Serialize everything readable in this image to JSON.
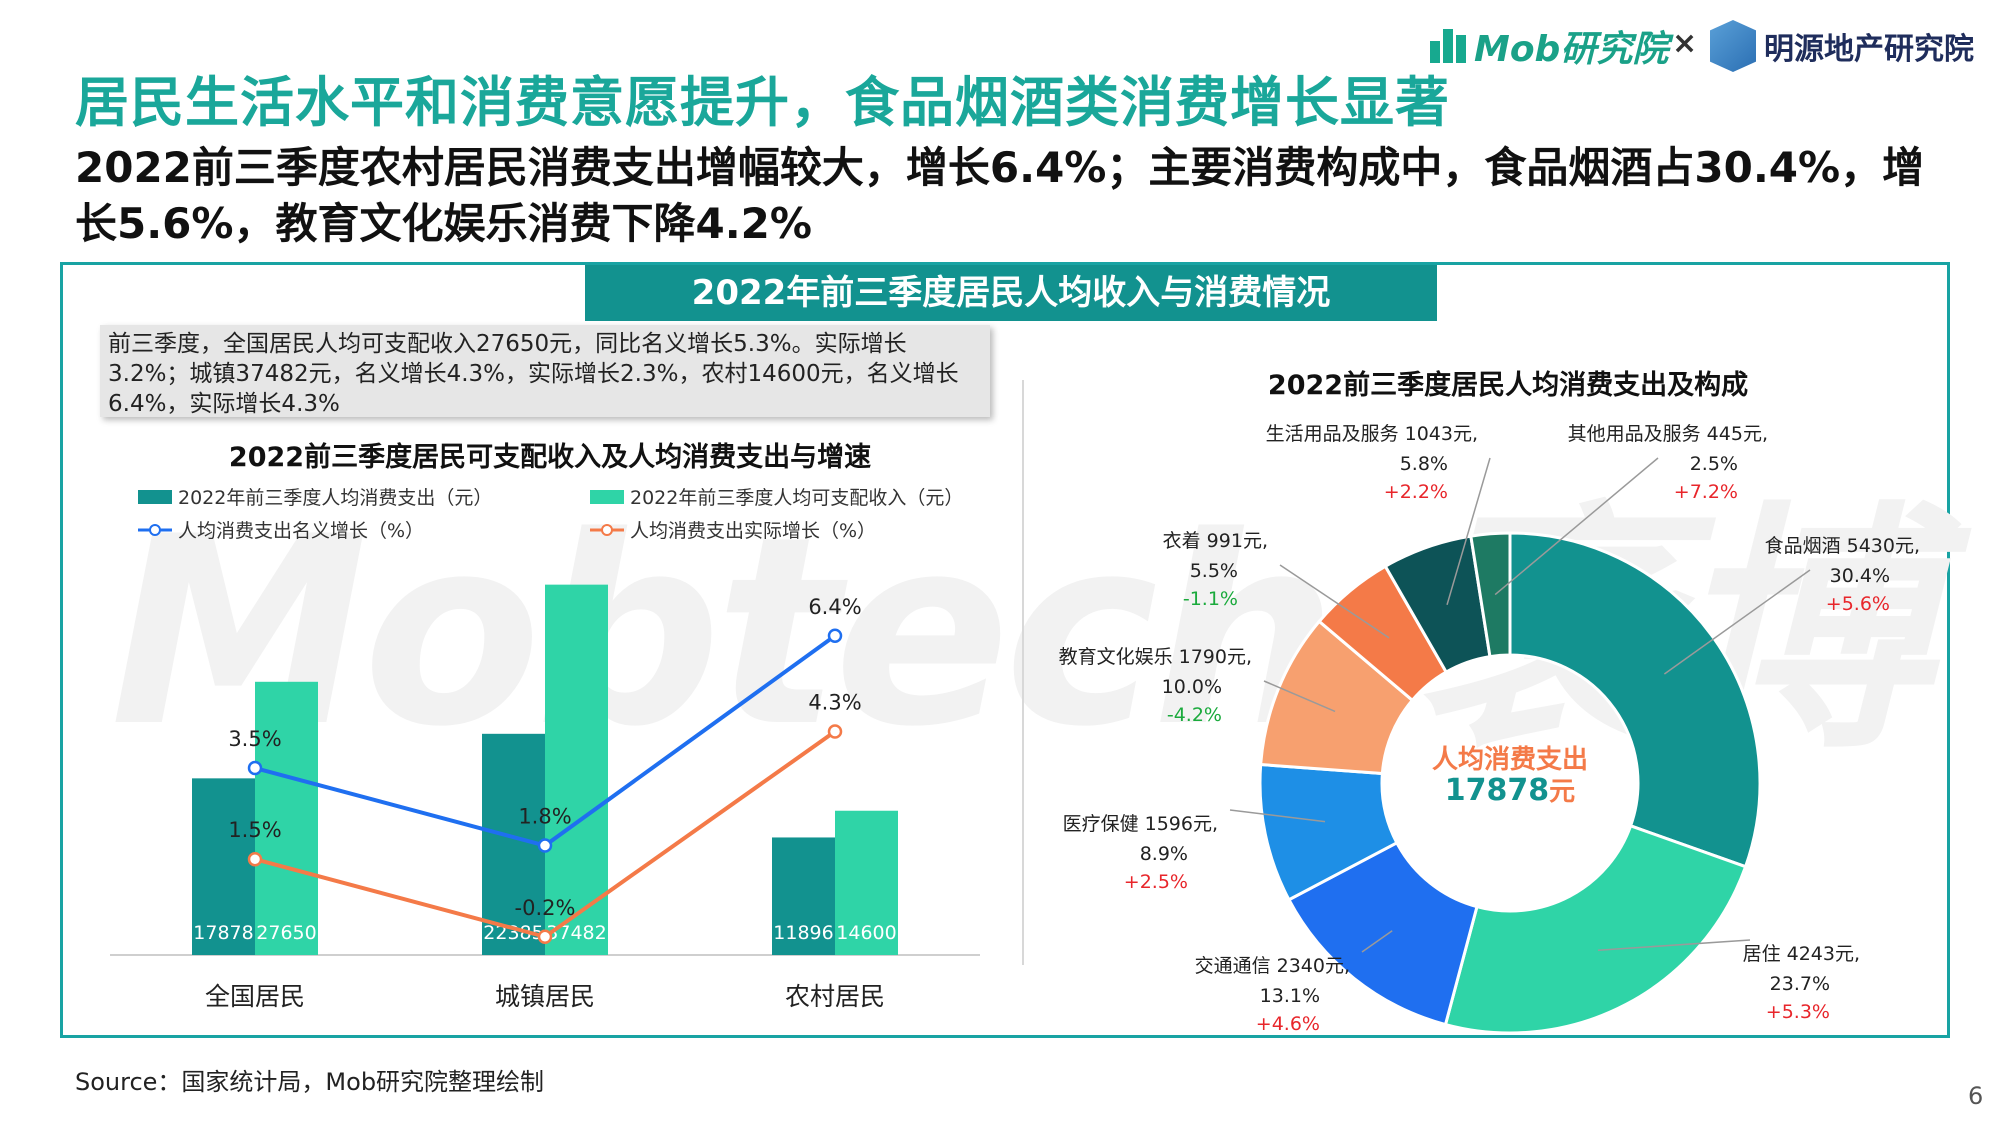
{
  "brand": {
    "mob": "Mob研究院",
    "sep": "×",
    "mingyuan": "明源地产研究院"
  },
  "title": "居民生活水平和消费意愿提升，食品烟酒类消费增长显著",
  "subtitle": "2022前三季度农村居民消费支出增幅较大，增长6.4%；主要消费构成中，食品烟酒占30.4%，增长5.6%，教育文化娱乐消费下降4.2%",
  "banner": "2022年前三季度居民人均收入与消费情况",
  "note": "前三季度，全国居民人均可支配收入27650元，同比名义增长5.3%。实际增长3.2%；城镇37482元，名义增长4.3%，实际增长2.3%，农村14600元，名义增长6.4%，实际增长4.3%",
  "watermark": "Mobtech 袤博",
  "source": "Source：国家统计局，Mob研究院整理绘制",
  "page": "6",
  "colors": {
    "teal_dark": "#12928f",
    "teal_light": "#2fd4a7",
    "blue": "#1f6ff0",
    "orange": "#f47a48",
    "frame": "#18a3a3"
  },
  "chart_data": [
    {
      "type": "bar",
      "title": "2022前三季度居民可支配收入及人均消费支出与增速",
      "categories": [
        "全国居民",
        "城镇居民",
        "农村居民"
      ],
      "series": [
        {
          "name": "2022年前三季度人均消费支出（元）",
          "kind": "bar",
          "values": [
            17878,
            22385,
            11896
          ]
        },
        {
          "name": "2022年前三季度人均可支配收入（元）",
          "kind": "bar",
          "values": [
            27650,
            37482,
            14600
          ]
        },
        {
          "name": "人均消费支出名义增长（%）",
          "kind": "line",
          "values": [
            3.5,
            1.8,
            6.4
          ],
          "labels": [
            "3.5%",
            "1.8%",
            "6.4%"
          ]
        },
        {
          "name": "人均消费支出实际增长（%）",
          "kind": "line",
          "values": [
            1.5,
            -0.2,
            4.3
          ],
          "labels": [
            "1.5%",
            "-0.2%",
            "4.3%"
          ]
        }
      ],
      "bar_ylim": [
        0,
        42000
      ],
      "line_ylim": [
        -0.6,
        8.5
      ],
      "grid": false,
      "legend": "top"
    },
    {
      "type": "pie",
      "title": "2022前三季度居民人均消费支出及构成",
      "center_label": "人均消费支出",
      "center_value": "17878",
      "center_unit": "元",
      "slices": [
        {
          "label": "食品烟酒 5430元,",
          "pct": "30.4%",
          "change": "+5.6%",
          "value": 30.4,
          "color": "#12928f"
        },
        {
          "label": "居住 4243元,",
          "pct": "23.7%",
          "change": "+5.3%",
          "value": 23.7,
          "color": "#2fd4a7"
        },
        {
          "label": "交通通信 2340元,",
          "pct": "13.1%",
          "change": "+4.6%",
          "value": 13.1,
          "color": "#1f6ff0"
        },
        {
          "label": "医疗保健 1596元,",
          "pct": "8.9%",
          "change": "+2.5%",
          "value": 8.9,
          "color": "#1e8fe6"
        },
        {
          "label": "教育文化娱乐 1790元,",
          "pct": "10.0%",
          "change": "-4.2%",
          "value": 10.0,
          "color": "#f7a06f"
        },
        {
          "label": "衣着 991元,",
          "pct": "5.5%",
          "change": "-1.1%",
          "value": 5.5,
          "color": "#f47a48"
        },
        {
          "label": "生活用品及服务 1043元,",
          "pct": "5.8%",
          "change": "+2.2%",
          "value": 5.8,
          "color": "#0d5357"
        },
        {
          "label": "其他用品及服务 445元,",
          "pct": "2.5%",
          "change": "+7.2%",
          "value": 2.5,
          "color": "#1e7a63"
        }
      ],
      "positive_color": "#e8262b",
      "negative_color": "#1aaa3c"
    }
  ]
}
